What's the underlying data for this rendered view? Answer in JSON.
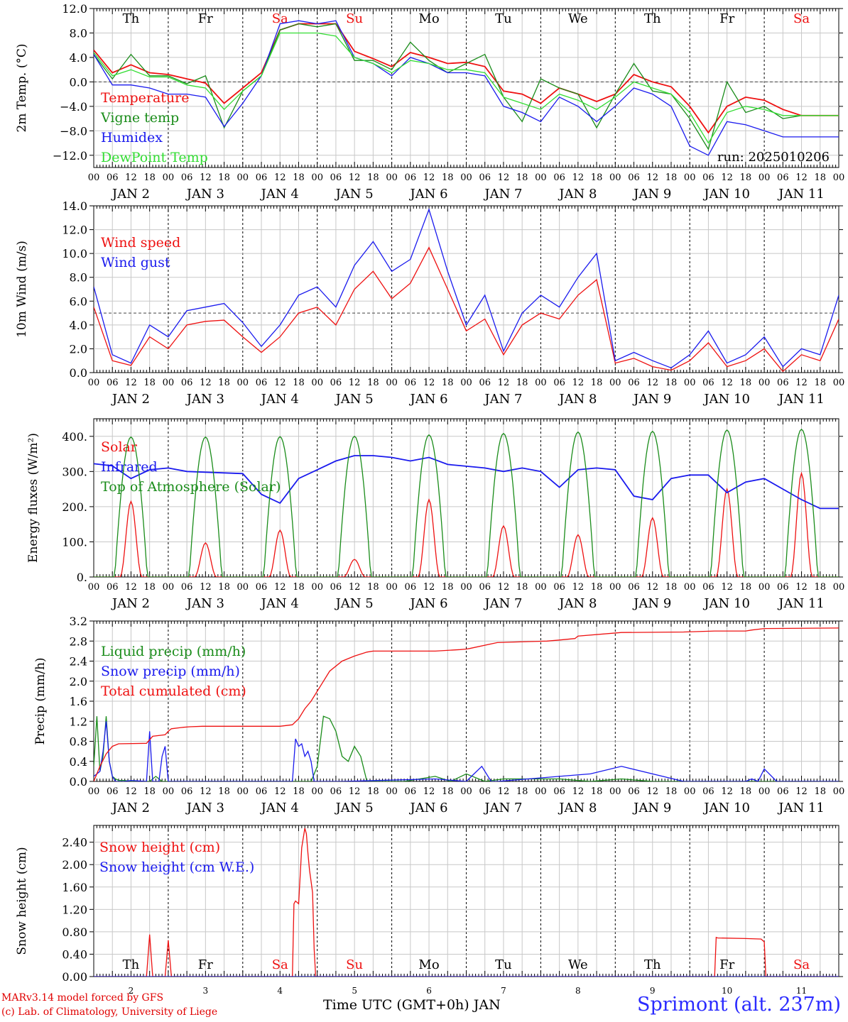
{
  "run_label": "run: 2025010206",
  "footer": {
    "credit_line1": "MARv3.14 model forced by GFS",
    "credit_line2": "(c) Lab. of Climatology, University of Liege",
    "xlabel": "Time UTC (GMT+0h) JAN",
    "station": "Sprimont (alt. 237m)"
  },
  "colors": {
    "red": "#ee1111",
    "green": "#1a8c1a",
    "blue": "#1a1aee",
    "lightgreen": "#33dd33",
    "weekend": "#ee1111"
  },
  "axis": {
    "hour_ticks": [
      "00",
      "06",
      "12",
      "18"
    ],
    "date_labels": [
      "JAN  2",
      "JAN  3",
      "JAN  4",
      "JAN  5",
      "JAN  6",
      "JAN  7",
      "JAN  8",
      "JAN  9",
      "JAN 10",
      "JAN 11"
    ],
    "weekdays": [
      "Th",
      "Fr",
      "Sa",
      "Su",
      "Mo",
      "Tu",
      "We",
      "Th",
      "Fr",
      "Sa"
    ],
    "weekday_weekend": [
      false,
      false,
      true,
      true,
      false,
      false,
      false,
      false,
      false,
      true
    ],
    "bottom_day_numbers": [
      "2",
      "3",
      "4",
      "5",
      "6",
      "7",
      "8",
      "9",
      "10",
      "11"
    ]
  },
  "chart_data": [
    {
      "type": "line",
      "ylabel": "2m Temp. (°C)",
      "ylim": [
        -14,
        12
      ],
      "yticks": [
        12,
        8,
        4,
        0,
        -4,
        -8,
        -12
      ],
      "ytick_labels": [
        "12.0",
        "8.0",
        "4.0",
        "0.0",
        "−4.0",
        "−8.0",
        "−12.0"
      ],
      "reference_line": 0,
      "x_hours": [
        0,
        6,
        12,
        18,
        24,
        30,
        36,
        42,
        48,
        54,
        60,
        66,
        72,
        78,
        84,
        90,
        96,
        102,
        108,
        114,
        120,
        126,
        132,
        138,
        144,
        150,
        156,
        162,
        168,
        174,
        180,
        186,
        192,
        198,
        204,
        210,
        216,
        222,
        228,
        234,
        240
      ],
      "series": [
        {
          "name": "Temperature",
          "color": "red",
          "values": [
            5.2,
            1.5,
            2.8,
            1.5,
            1.2,
            0.5,
            -0.2,
            -3.5,
            -1.0,
            1.5,
            8.5,
            9.5,
            9.5,
            9.5,
            5.0,
            3.8,
            2.5,
            4.8,
            4.0,
            3.0,
            3.2,
            2.5,
            -1.5,
            -2.0,
            -3.5,
            -1.0,
            -2.0,
            -3.2,
            -2.0,
            1.2,
            0.0,
            -0.8,
            -4.0,
            -8.3,
            -4.0,
            -2.5,
            -3.0,
            -4.5,
            -5.5,
            -5.5,
            -5.5
          ]
        },
        {
          "name": "Vigne temp",
          "color": "green",
          "values": [
            4.5,
            0.5,
            4.5,
            1.0,
            1.0,
            -0.3,
            1.0,
            -7.5,
            -1.5,
            1.0,
            8.5,
            9.5,
            9.0,
            9.5,
            3.5,
            3.5,
            2.0,
            6.5,
            3.5,
            1.5,
            3.0,
            4.5,
            -2.5,
            -6.5,
            0.5,
            -1.0,
            -2.0,
            -7.5,
            -2.0,
            3.0,
            -1.5,
            -2.0,
            -6.0,
            -11.0,
            0.0,
            -5.0,
            -4.0,
            -6.0,
            -5.5,
            -5.5,
            -5.5
          ]
        },
        {
          "name": "Humidex",
          "color": "blue",
          "values": [
            4.5,
            -0.5,
            -0.5,
            -1.0,
            -2.0,
            -2.0,
            -2.5,
            -7.3,
            -3.5,
            1.0,
            9.5,
            10.0,
            9.5,
            10.0,
            4.0,
            3.0,
            1.0,
            4.0,
            3.0,
            1.5,
            1.5,
            1.0,
            -4.0,
            -5.0,
            -6.5,
            -2.5,
            -4.0,
            -6.5,
            -4.0,
            -1.0,
            -2.0,
            -4.0,
            -10.5,
            -12.0,
            -6.5,
            -7.0,
            -8.0,
            -9.0,
            -9.0,
            -9.0,
            -9.0
          ]
        },
        {
          "name": "DewPoint Temp",
          "color": "lightgreen",
          "values": [
            4.8,
            1.0,
            2.0,
            0.8,
            0.8,
            -0.5,
            -1.0,
            -4.5,
            -1.5,
            1.0,
            8.0,
            8.0,
            8.0,
            7.5,
            4.0,
            3.0,
            1.5,
            3.5,
            3.0,
            2.0,
            2.0,
            1.5,
            -2.5,
            -3.5,
            -4.5,
            -2.0,
            -3.0,
            -4.5,
            -2.5,
            0.0,
            -1.0,
            -2.0,
            -5.0,
            -10.0,
            -5.0,
            -4.0,
            -4.5,
            -5.5,
            -5.5,
            -5.5,
            -5.5
          ]
        }
      ]
    },
    {
      "type": "line",
      "ylabel": "10m Wind (m/s)",
      "ylim": [
        0,
        14
      ],
      "yticks": [
        14,
        12,
        10,
        8,
        6,
        4,
        2,
        0
      ],
      "ytick_labels": [
        "14.0",
        "12.0",
        "10.0",
        "8.0",
        "6.0",
        "4.0",
        "2.0",
        "0.0"
      ],
      "reference_line": 5,
      "x_hours": [
        0,
        6,
        12,
        18,
        24,
        30,
        36,
        42,
        48,
        54,
        60,
        66,
        72,
        78,
        84,
        90,
        96,
        102,
        108,
        114,
        120,
        126,
        132,
        138,
        144,
        150,
        156,
        162,
        168,
        174,
        180,
        186,
        192,
        198,
        204,
        210,
        216,
        222,
        228,
        234,
        240
      ],
      "series": [
        {
          "name": "Wind speed",
          "color": "red",
          "values": [
            5.5,
            1.0,
            0.6,
            3.0,
            2.0,
            4.0,
            4.3,
            4.4,
            3.0,
            1.7,
            3.0,
            5.0,
            5.5,
            4.0,
            7.0,
            8.5,
            6.2,
            7.5,
            10.5,
            7.0,
            3.5,
            4.5,
            1.5,
            4.0,
            5.0,
            4.5,
            6.5,
            7.8,
            0.8,
            1.2,
            0.5,
            0.2,
            1.0,
            2.5,
            0.5,
            1.0,
            2.0,
            0.1,
            1.5,
            1.0,
            4.5
          ]
        },
        {
          "name": "Wind gust",
          "color": "blue",
          "values": [
            7.2,
            1.5,
            0.8,
            4.0,
            3.0,
            5.2,
            5.5,
            5.8,
            4.2,
            2.2,
            4.0,
            6.5,
            7.2,
            5.5,
            9.0,
            11.0,
            8.5,
            9.5,
            13.7,
            8.5,
            4.0,
            6.5,
            1.8,
            5.0,
            6.5,
            5.5,
            8.0,
            10.0,
            1.0,
            1.7,
            1.0,
            0.4,
            1.5,
            3.5,
            0.8,
            1.5,
            3.0,
            0.5,
            2.0,
            1.5,
            6.5
          ]
        }
      ]
    },
    {
      "type": "line",
      "ylabel": "Energy fluxes (W/m²)",
      "ylim": [
        0,
        450
      ],
      "yticks": [
        400,
        300,
        200,
        100,
        0
      ],
      "ytick_labels": [
        "400.",
        "300.",
        "200.",
        "100.",
        "0."
      ],
      "series": [
        {
          "name": "Solar",
          "color": "red",
          "peaks": [
            215,
            97,
            133,
            50,
            220,
            145,
            120,
            168,
            250,
            295
          ]
        },
        {
          "name": "Infrared",
          "color": "blue",
          "x_hours": [
            0,
            6,
            12,
            18,
            24,
            30,
            36,
            42,
            48,
            54,
            60,
            66,
            72,
            78,
            84,
            90,
            96,
            102,
            108,
            114,
            120,
            126,
            132,
            138,
            144,
            150,
            156,
            162,
            168,
            174,
            180,
            186,
            192,
            198,
            204,
            210,
            216,
            222,
            228,
            234,
            240
          ],
          "values": [
            322,
            316,
            280,
            305,
            310,
            300,
            298,
            296,
            294,
            235,
            210,
            280,
            305,
            330,
            345,
            345,
            340,
            330,
            340,
            320,
            315,
            310,
            300,
            310,
            300,
            255,
            305,
            310,
            305,
            230,
            220,
            280,
            290,
            290,
            240,
            270,
            280,
            250,
            220,
            195,
            195
          ]
        },
        {
          "name": "Top of Atmosphere (Solar)",
          "color": "green",
          "peaks": [
            398,
            398,
            399,
            400,
            404,
            408,
            412,
            414,
            418,
            420
          ]
        }
      ]
    },
    {
      "type": "line",
      "ylabel": "Precip (mm/h)",
      "ylim": [
        0,
        3.2
      ],
      "yticks": [
        3.2,
        2.8,
        2.4,
        2.0,
        1.6,
        1.2,
        0.8,
        0.4,
        0.0
      ],
      "ytick_labels": [
        "3.2",
        "2.8",
        "2.4",
        "2.0",
        "1.6",
        "1.2",
        "0.8",
        "0.4",
        "0.0"
      ],
      "series": [
        {
          "name": "Liquid precip (mm/h)",
          "color": "green",
          "x_hours": [
            0,
            1,
            2,
            3,
            4,
            5,
            6,
            7,
            8,
            10,
            12,
            18,
            20,
            22,
            24,
            26,
            28,
            30,
            48,
            66,
            68,
            70,
            72,
            74,
            76,
            78,
            80,
            82,
            84,
            86,
            88,
            90,
            92,
            100,
            110,
            115,
            120,
            126,
            132,
            150,
            160,
            170,
            180,
            200,
            216,
            230,
            240
          ],
          "values": [
            0.3,
            1.3,
            0.2,
            0.5,
            1.3,
            0.4,
            0.1,
            0.05,
            0.02,
            0.02,
            0.0,
            0.0,
            0.1,
            0.0,
            0.0,
            0.0,
            0.0,
            0.0,
            0.0,
            0.0,
            0.0,
            0.0,
            0.3,
            1.3,
            1.25,
            1.0,
            0.5,
            0.4,
            0.7,
            0.5,
            0.0,
            0.0,
            0.0,
            0.0,
            0.1,
            0.0,
            0.15,
            0.0,
            0.05,
            0.05,
            0.0,
            0.05,
            0.0,
            0.0,
            0.0,
            0.0,
            0.0
          ]
        },
        {
          "name": "Snow precip (mm/h)",
          "color": "blue",
          "x_hours": [
            0,
            1,
            2,
            3,
            4,
            5,
            6,
            7,
            8,
            10,
            12,
            17,
            18,
            19,
            20,
            21,
            22,
            23,
            24,
            25,
            26,
            30,
            40,
            50,
            60,
            64,
            65,
            66,
            67,
            68,
            69,
            70,
            71,
            72,
            74,
            80,
            110,
            120,
            125,
            128,
            130,
            140,
            150,
            160,
            170,
            190,
            200,
            210,
            212,
            214,
            216,
            220,
            240
          ],
          "values": [
            0.1,
            0.15,
            0.2,
            0.6,
            1.2,
            0.4,
            0.1,
            0.0,
            0.0,
            0.0,
            0.02,
            0.0,
            1.0,
            0.0,
            0.0,
            0.0,
            0.5,
            0.7,
            0.0,
            0.0,
            0.0,
            0.0,
            0.0,
            0.0,
            0.0,
            0.0,
            0.85,
            0.7,
            0.75,
            0.5,
            0.6,
            0.4,
            0.0,
            0.0,
            0.0,
            0.0,
            0.05,
            0.0,
            0.3,
            0.0,
            0.0,
            0.05,
            0.1,
            0.15,
            0.3,
            0.0,
            0.0,
            0.0,
            0.05,
            0.0,
            0.25,
            0.0,
            0.0
          ]
        },
        {
          "name": "Total cumulated (cm)",
          "color": "red",
          "x_hours": [
            0,
            2,
            4,
            6,
            8,
            17,
            19,
            23,
            24,
            25,
            29,
            31,
            35,
            60,
            64,
            66,
            68,
            70,
            72,
            73,
            76,
            80,
            84,
            88,
            90,
            100,
            110,
            118,
            120,
            121,
            130,
            140,
            146,
            150,
            155,
            156,
            170,
            190,
            200,
            210,
            212,
            216,
            240
          ],
          "values": [
            0.0,
            0.3,
            0.55,
            0.7,
            0.75,
            0.76,
            0.9,
            0.93,
            1.0,
            1.05,
            1.08,
            1.09,
            1.1,
            1.1,
            1.13,
            1.25,
            1.45,
            1.6,
            1.8,
            1.9,
            2.2,
            2.4,
            2.5,
            2.58,
            2.6,
            2.6,
            2.6,
            2.63,
            2.64,
            2.65,
            2.77,
            2.79,
            2.8,
            2.82,
            2.85,
            2.9,
            2.97,
            2.98,
            3.0,
            3.0,
            3.02,
            3.05,
            3.06
          ]
        }
      ]
    },
    {
      "type": "line",
      "ylabel": "Snow height (cm)",
      "ylim": [
        0,
        2.7
      ],
      "yticks": [
        2.4,
        2.0,
        1.6,
        1.2,
        0.8,
        0.4,
        0.0
      ],
      "ytick_labels": [
        "2.40",
        "2.00",
        "1.60",
        "1.20",
        "0.80",
        "0.40",
        "0.00"
      ],
      "series": [
        {
          "name": "Snow height (cm)",
          "color": "red",
          "x_hours": [
            0,
            17,
            18,
            19,
            20,
            23,
            24,
            25,
            26,
            64,
            64.5,
            65,
            66,
            67,
            68,
            68.5,
            69,
            69.5,
            70,
            70.5,
            71,
            71.5,
            72,
            200,
            200.5,
            201,
            210,
            215,
            216,
            216.5,
            217,
            240
          ],
          "values": [
            0,
            0,
            0.75,
            0,
            0,
            0,
            0.65,
            0,
            0,
            0,
            1.3,
            1.35,
            1.3,
            2.3,
            2.65,
            2.55,
            2.2,
            1.9,
            1.7,
            1.5,
            0.5,
            0,
            0,
            0,
            0.7,
            0.69,
            0.68,
            0.67,
            0.62,
            0,
            0,
            0
          ]
        },
        {
          "name": "Snow height (cm W.E.)",
          "color": "blue",
          "x_hours": [
            0,
            240
          ],
          "values": [
            0,
            0
          ]
        }
      ]
    }
  ]
}
